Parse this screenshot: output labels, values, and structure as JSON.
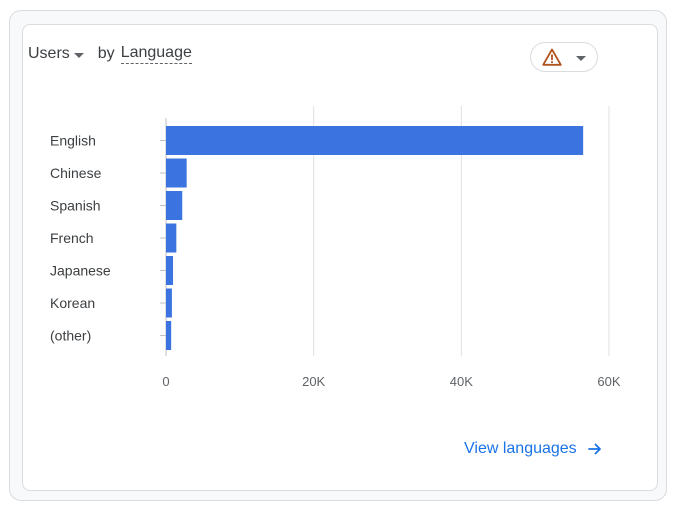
{
  "card": {
    "metric_label": "Users",
    "by_label": "by",
    "dimension_label": "Language",
    "view_link_label": "View languages",
    "icons": {
      "metric_caret": "caret-down-icon",
      "warning": "warning-icon",
      "menu_caret": "caret-down-icon",
      "link_arrow": "arrow-right-icon"
    }
  },
  "chart_data": {
    "type": "bar",
    "orientation": "horizontal",
    "categories": [
      "English",
      "Chinese",
      "Spanish",
      "French",
      "Japanese",
      "Korean",
      "(other)"
    ],
    "values": [
      56500,
      2800,
      2200,
      1400,
      950,
      800,
      700
    ],
    "xlim": [
      0,
      60000
    ],
    "x_ticks": [
      0,
      20000,
      40000,
      60000
    ],
    "x_tick_labels": [
      "0",
      "20K",
      "40K",
      "60K"
    ],
    "grid": "vertical",
    "colors": {
      "bar": "#3b73e0",
      "grid": "#e0e0e0",
      "axis": "#bdc1c6",
      "label": "#3c4043",
      "tick": "#5f6368",
      "warning": "#b3541e"
    }
  }
}
